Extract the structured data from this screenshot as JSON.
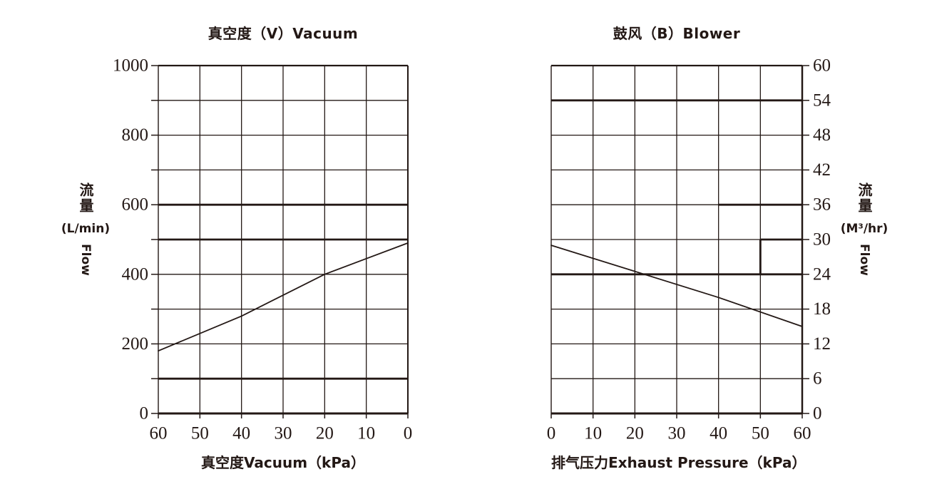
{
  "page": {
    "bg": "#ffffff",
    "ink": "#231815"
  },
  "chart_data": [
    {
      "type": "line",
      "title": "真空度（V）Vacuum",
      "xlabel": "真空度Vacuum（kPa）",
      "ylabel": {
        "cn": "流量",
        "unit": "(L/min)",
        "en": "Flow"
      },
      "x_ticks": [
        60,
        50,
        40,
        30,
        20,
        10,
        0
      ],
      "x_reversed": true,
      "xlim": [
        0,
        60
      ],
      "ylim": [
        0,
        1000
      ],
      "y_grid_step": 100,
      "y_label_step": 200,
      "grid": true,
      "legend": "none",
      "emphasized_gridlines": [
        {
          "y": 600
        },
        {
          "y": 500
        },
        {
          "y": 100
        }
      ],
      "emphasized_segments": [],
      "series": [
        {
          "name": "vacuum flow curve",
          "points": [
            [
              60,
              180
            ],
            [
              40,
              280
            ],
            [
              20,
              400
            ],
            [
              0,
              490
            ]
          ]
        }
      ]
    },
    {
      "type": "line",
      "title": "鼓风（B）Blower",
      "xlabel": "排气压力Exhaust Pressure（kPa）",
      "ylabel": {
        "cn": "流量",
        "unit": "(M³/hr)",
        "en": "Flow"
      },
      "x_ticks": [
        0,
        10,
        20,
        30,
        40,
        50,
        60
      ],
      "x_reversed": false,
      "xlim": [
        0,
        60
      ],
      "ylim": [
        0,
        60
      ],
      "y_grid_step": 6,
      "y_label_step": 6,
      "grid": true,
      "legend": "none",
      "emphasized_gridlines": [
        {
          "y": 54
        },
        {
          "y": 24
        },
        {
          "y": 36,
          "x1": 40,
          "x2": 60
        },
        {
          "y": 30,
          "x1": 50,
          "x2": 60
        }
      ],
      "emphasized_segments": [
        {
          "x": 50,
          "y1": 24,
          "y2": 30
        }
      ],
      "series": [
        {
          "name": "blower flow curve",
          "points": [
            [
              0,
              29
            ],
            [
              20,
              24.5
            ],
            [
              40,
              20
            ],
            [
              60,
              15
            ]
          ]
        }
      ]
    }
  ]
}
